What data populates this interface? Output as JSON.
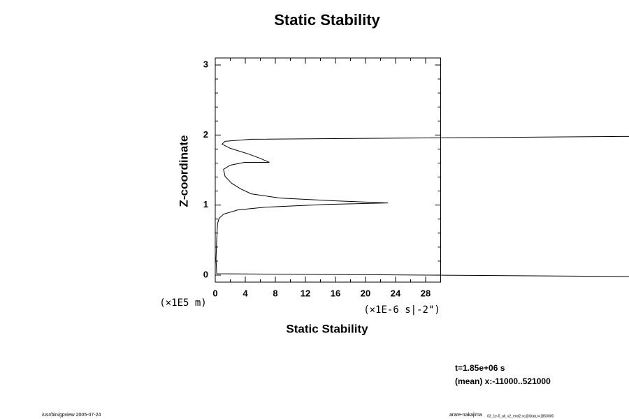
{
  "chart_data": {
    "type": "line",
    "title": "Static Stability",
    "xlabel": "Static Stability",
    "ylabel": "Z-coordinate",
    "yunit": "(×1E5 m)",
    "xunit": "(×1E-6 s|-2\")",
    "annotations": [
      "t=1.85e+06 s",
      "(mean) x:-11000..521000"
    ],
    "footer_left": "/usr/bin/gpview 2005-07-24",
    "footer_right": "arare-nakajima",
    "footer_right_sub": "03_1e-5_all_v2_end2.nc@Stab,t=1850000",
    "xlim": [
      0,
      30
    ],
    "ylim": [
      -0.1,
      3.1
    ],
    "xticks": [
      0,
      4,
      8,
      12,
      16,
      20,
      24,
      28
    ],
    "xminorticks": [
      2,
      6,
      10,
      14,
      18,
      22,
      26,
      30
    ],
    "yticks": [
      0,
      1,
      2,
      3
    ],
    "yminorticks": [
      0.2,
      0.4,
      0.6,
      0.8,
      1.2,
      1.4,
      1.6,
      1.8,
      2.2,
      2.4,
      2.6,
      2.8
    ],
    "color": "#000000",
    "x": [
      55.1,
      0.2,
      0.1,
      0.2,
      0.3,
      0.5,
      1.1,
      3.0,
      6.7,
      15,
      23,
      16,
      8.6,
      4.8,
      3.4,
      2.2,
      1.3,
      1.1,
      2.0,
      3.9,
      7.2,
      5.9,
      4.4,
      2.0,
      0.9,
      1.3,
      4.8,
      30,
      55.1
    ],
    "y": [
      -0.02,
      0.02,
      0.23,
      0.53,
      0.73,
      0.81,
      0.87,
      0.93,
      0.97,
      1.01,
      1.03,
      1.06,
      1.1,
      1.16,
      1.23,
      1.31,
      1.41,
      1.51,
      1.57,
      1.61,
      1.61,
      1.67,
      1.73,
      1.81,
      1.87,
      1.91,
      1.94,
      1.96,
      1.98
    ]
  }
}
